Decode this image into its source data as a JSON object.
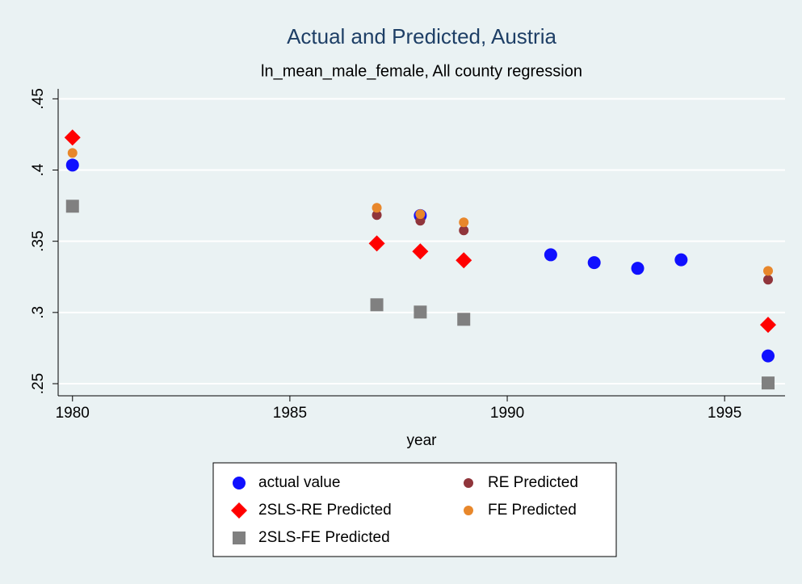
{
  "chart_data": {
    "type": "scatter",
    "title": "Actual and Predicted, Austria",
    "subtitle": "ln_mean_male_female, All county regression",
    "x_label": "year",
    "x": [
      1980,
      1987,
      1988,
      1989,
      1991,
      1992,
      1993,
      1994,
      1996
    ],
    "series": [
      {
        "name": "actual value",
        "color": "#1010ff",
        "marker": "circle",
        "values": [
          0.4035,
          null,
          0.368,
          null,
          0.3405,
          0.335,
          0.331,
          0.337,
          0.2695
        ]
      },
      {
        "name": "RE Predicted",
        "color": "#90353b",
        "marker": "small-circle",
        "values": [
          null,
          0.3684,
          0.3644,
          0.3576,
          null,
          null,
          null,
          null,
          0.323
        ]
      },
      {
        "name": "2SLS-RE Predicted",
        "color": "#ff0000",
        "marker": "diamond",
        "values": [
          0.4228,
          0.3485,
          0.3429,
          0.3366,
          null,
          null,
          null,
          null,
          0.2913
        ]
      },
      {
        "name": "FE Predicted",
        "color": "#e8872b",
        "marker": "small-circle",
        "values": [
          0.412,
          0.3735,
          0.369,
          0.3633,
          null,
          null,
          null,
          null,
          0.3292
        ]
      },
      {
        "name": "2SLS-FE Predicted",
        "color": "#808080",
        "marker": "square",
        "values": [
          0.3746,
          0.3054,
          0.3003,
          0.2952,
          null,
          null,
          null,
          null,
          0.2505
        ]
      }
    ],
    "xlim": [
      1979.67,
      1996.39
    ],
    "xticks": [
      1980,
      1985,
      1990,
      1995
    ],
    "ylim": [
      0.2415,
      0.457
    ],
    "yticks": [
      {
        "value": 0.25,
        "label": ".25"
      },
      {
        "value": 0.3,
        "label": ".3"
      },
      {
        "value": 0.35,
        "label": ".35"
      },
      {
        "value": 0.4,
        "label": ".4"
      },
      {
        "value": 0.45,
        "label": ".45"
      }
    ],
    "grid": true
  }
}
